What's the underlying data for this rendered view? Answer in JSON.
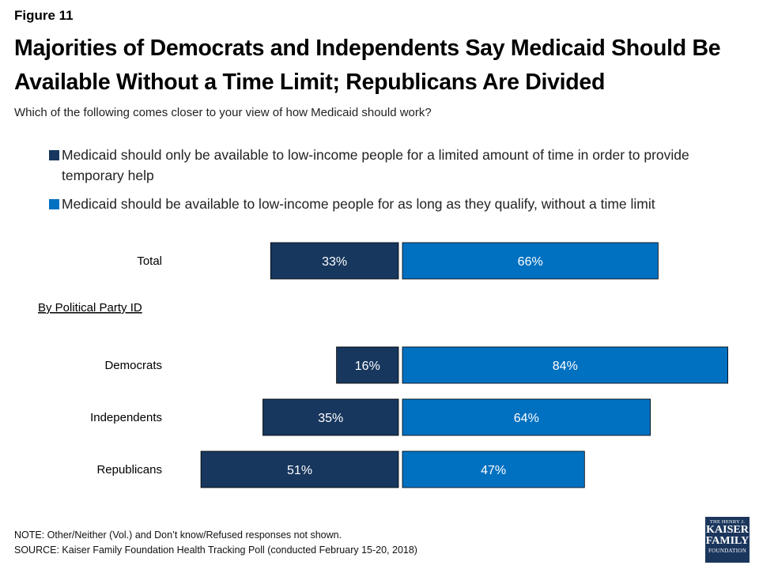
{
  "figure_label": "Figure 11",
  "title": "Majorities of Democrats and Independents Say Medicaid Should Be Available Without a Time Limit; Republicans Are Divided",
  "subtitle": "Which of the following comes closer to your view of how Medicaid should work?",
  "colors": {
    "limited": "#17375e",
    "no_limit": "#0070c0"
  },
  "chart_data": {
    "type": "bar",
    "orientation": "horizontal-diverging",
    "categories": [
      "Total",
      "Democrats",
      "Independents",
      "Republicans"
    ],
    "section_label": "By Political Party ID",
    "series": [
      {
        "name": "Medicaid should only be available to low-income people for a limited amount of time in order to provide temporary help",
        "values": [
          33,
          16,
          35,
          51
        ]
      },
      {
        "name": "Medicaid should be available to low-income people for as long as they qualify, without a time limit",
        "values": [
          66,
          84,
          64,
          47
        ]
      }
    ],
    "value_labels": [
      [
        "33%",
        "16%",
        "35%",
        "51%"
      ],
      [
        "66%",
        "84%",
        "64%",
        "47%"
      ]
    ]
  },
  "notes": {
    "note": "NOTE: Other/Neither (Vol.) and Don’t know/Refused responses not shown.",
    "source": "SOURCE: Kaiser Family Foundation Health Tracking Poll (conducted February 15-20, 2018)"
  },
  "logo": {
    "line1": "THE HENRY J.",
    "line2": "KAISER",
    "line3": "FAMILY",
    "line4": "FOUNDATION"
  }
}
